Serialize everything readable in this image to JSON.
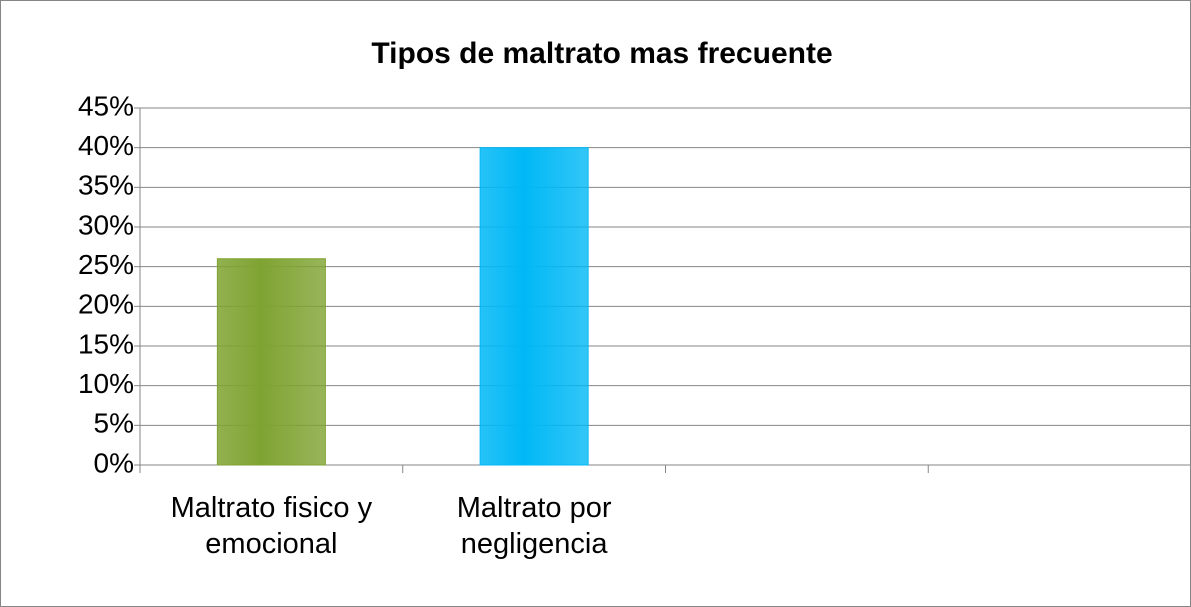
{
  "chart_data": {
    "type": "bar",
    "title": "Tipos de maltrato mas frecuente",
    "categories": [
      "Maltrato fisico y emocional",
      "Maltrato por negligencia",
      null,
      null
    ],
    "values": [
      26,
      40,
      null,
      null
    ],
    "colors": [
      "#7fa332",
      "#00b8f5"
    ],
    "ylim": [
      0,
      45
    ],
    "yticks": [
      {
        "value": 0,
        "label": "0%"
      },
      {
        "value": 5,
        "label": "5%"
      },
      {
        "value": 10,
        "label": "10%"
      },
      {
        "value": 15,
        "label": "15%"
      },
      {
        "value": 20,
        "label": "20%"
      },
      {
        "value": 25,
        "label": "25%"
      },
      {
        "value": 30,
        "label": "30%"
      },
      {
        "value": 35,
        "label": "35%"
      },
      {
        "value": 40,
        "label": "40%"
      },
      {
        "value": 45,
        "label": "45%"
      }
    ],
    "grid": true
  }
}
